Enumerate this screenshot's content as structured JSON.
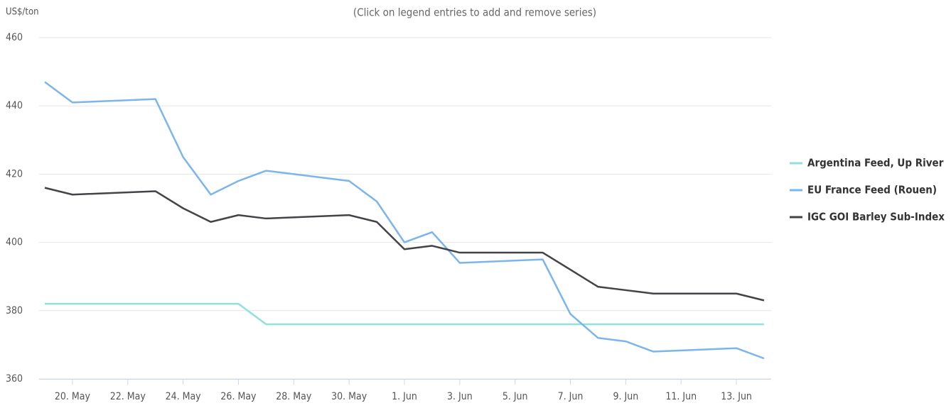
{
  "chart_data": {
    "type": "line",
    "subtitle": "(Click on legend entries to add and remove series)",
    "y_label": "US$/ton",
    "x": [
      "05-19",
      "05-20",
      "05-23",
      "05-24",
      "05-25",
      "05-26",
      "05-27",
      "05-30",
      "05-31",
      "06-01",
      "06-02",
      "06-03",
      "06-06",
      "06-07",
      "06-08",
      "06-09",
      "06-10",
      "06-13",
      "06-14"
    ],
    "series": [
      {
        "name": "Argentina Feed, Up River",
        "color": "#90e0e0",
        "values": [
          382,
          382,
          382,
          382,
          382,
          382,
          376,
          376,
          376,
          376,
          376,
          376,
          376,
          376,
          376,
          376,
          376,
          376,
          376
        ]
      },
      {
        "name": "EU France Feed (Rouen)",
        "color": "#7cb5ec",
        "values": [
          447,
          441,
          442,
          425,
          414,
          418,
          421,
          418,
          412,
          400,
          403,
          394,
          395,
          379,
          372,
          371,
          368,
          369,
          366
        ]
      },
      {
        "name": "IGC GOI Barley Sub-Index",
        "color": "#434348",
        "values": [
          416,
          414,
          415,
          410,
          406,
          408,
          407,
          408,
          406,
          398,
          399,
          397,
          397,
          392,
          387,
          386,
          385,
          385,
          383
        ]
      }
    ],
    "xlim": [
      "05-19",
      "06-14"
    ],
    "xticks": [
      {
        "value": "05-20",
        "label": "20. May"
      },
      {
        "value": "05-22",
        "label": "22. May"
      },
      {
        "value": "05-24",
        "label": "24. May"
      },
      {
        "value": "05-26",
        "label": "26. May"
      },
      {
        "value": "05-28",
        "label": "28. May"
      },
      {
        "value": "05-30",
        "label": "30. May"
      },
      {
        "value": "06-01",
        "label": "1. Jun"
      },
      {
        "value": "06-03",
        "label": "3. Jun"
      },
      {
        "value": "06-05",
        "label": "5. Jun"
      },
      {
        "value": "06-07",
        "label": "7. Jun"
      },
      {
        "value": "06-09",
        "label": "9. Jun"
      },
      {
        "value": "06-11",
        "label": "11. Jun"
      },
      {
        "value": "06-13",
        "label": "13. Jun"
      }
    ],
    "ylim": [
      360,
      460
    ],
    "yticks": [
      360,
      380,
      400,
      420,
      440,
      460
    ],
    "grid": true,
    "legend": "right"
  }
}
